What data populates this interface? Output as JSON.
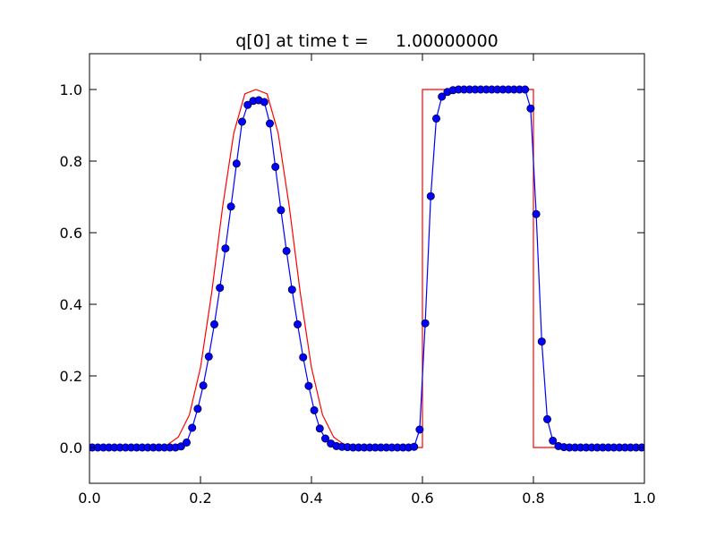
{
  "chart_data": {
    "type": "line",
    "title": "q[0] at time t =     1.00000000",
    "xlabel": "",
    "ylabel": "",
    "xlim": [
      0.0,
      1.0
    ],
    "ylim": [
      -0.1,
      1.1
    ],
    "grid": false,
    "xticks": [
      "0.0",
      "0.2",
      "0.4",
      "0.6",
      "0.8",
      "1.0"
    ],
    "yticks": [
      "0.0",
      "0.2",
      "0.4",
      "0.6",
      "0.8",
      "1.0"
    ],
    "series": [
      {
        "role": "exact",
        "color": "#ff0000",
        "marker": "none",
        "x": [
          0.0,
          0.1,
          0.12,
          0.14,
          0.16,
          0.18,
          0.2,
          0.22,
          0.24,
          0.26,
          0.28,
          0.3,
          0.32,
          0.34,
          0.36,
          0.38,
          0.4,
          0.42,
          0.44,
          0.46,
          0.48,
          0.5,
          0.6,
          0.6,
          0.8,
          0.8,
          1.0
        ],
        "y": [
          0.0,
          0.0,
          0.001,
          0.007,
          0.029,
          0.091,
          0.223,
          0.43,
          0.673,
          0.878,
          0.988,
          1.0,
          0.988,
          0.878,
          0.673,
          0.43,
          0.223,
          0.091,
          0.029,
          0.007,
          0.001,
          0.0,
          0.0,
          1.0,
          1.0,
          0.0,
          0.0
        ]
      },
      {
        "role": "computed",
        "color": "#0000ff",
        "marker": "circle",
        "x": [
          0.005,
          0.015,
          0.025,
          0.035,
          0.045,
          0.055,
          0.065,
          0.075,
          0.085,
          0.095,
          0.105,
          0.115,
          0.125,
          0.135,
          0.145,
          0.155,
          0.165,
          0.175,
          0.185,
          0.195,
          0.205,
          0.215,
          0.225,
          0.235,
          0.245,
          0.255,
          0.265,
          0.275,
          0.285,
          0.295,
          0.305,
          0.315,
          0.325,
          0.335,
          0.345,
          0.355,
          0.365,
          0.375,
          0.385,
          0.395,
          0.405,
          0.415,
          0.425,
          0.435,
          0.445,
          0.455,
          0.465,
          0.475,
          0.485,
          0.495,
          0.505,
          0.515,
          0.525,
          0.535,
          0.545,
          0.555,
          0.565,
          0.575,
          0.585,
          0.595,
          0.605,
          0.615,
          0.625,
          0.635,
          0.645,
          0.655,
          0.665,
          0.675,
          0.685,
          0.695,
          0.705,
          0.715,
          0.725,
          0.735,
          0.745,
          0.755,
          0.765,
          0.775,
          0.785,
          0.795,
          0.805,
          0.815,
          0.825,
          0.835,
          0.845,
          0.855,
          0.865,
          0.875,
          0.885,
          0.895,
          0.905,
          0.915,
          0.925,
          0.935,
          0.945,
          0.955,
          0.965,
          0.975,
          0.985,
          0.995
        ],
        "y": [
          0.0,
          0.0,
          0.0,
          0.0,
          0.0,
          0.0,
          0.0,
          0.0,
          0.0,
          0.0,
          0.0,
          0.0,
          0.0,
          0.0,
          0.0,
          0.0,
          0.003,
          0.014,
          0.055,
          0.108,
          0.173,
          0.254,
          0.344,
          0.446,
          0.556,
          0.673,
          0.793,
          0.91,
          0.957,
          0.968,
          0.97,
          0.965,
          0.905,
          0.784,
          0.663,
          0.549,
          0.441,
          0.344,
          0.252,
          0.172,
          0.104,
          0.053,
          0.025,
          0.011,
          0.004,
          0.002,
          0.001,
          0.0,
          0.0,
          0.0,
          0.0,
          0.0,
          0.0,
          0.0,
          0.0,
          0.0,
          0.0,
          0.0,
          0.002,
          0.05,
          0.347,
          0.702,
          0.919,
          0.98,
          0.993,
          0.998,
          1.0,
          1.0,
          1.0,
          1.0,
          1.0,
          1.0,
          1.0,
          1.0,
          1.0,
          1.0,
          1.0,
          1.0,
          1.0,
          0.947,
          0.652,
          0.296,
          0.079,
          0.019,
          0.004,
          0.001,
          0.0,
          0.0,
          0.0,
          0.0,
          0.0,
          0.0,
          0.0,
          0.0,
          0.0,
          0.0,
          0.0,
          0.0,
          0.0,
          0.0
        ]
      }
    ]
  }
}
